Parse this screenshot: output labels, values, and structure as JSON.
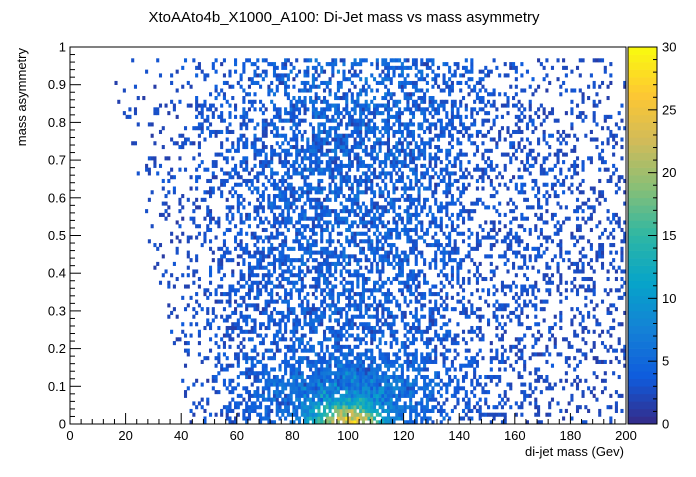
{
  "chart_data": {
    "type": "heatmap",
    "title": "XtoAAto4b_X1000_A100: Di-Jet mass vs mass asymmetry",
    "xlabel": "di-jet mass (Gev)",
    "ylabel": "mass asymmetry",
    "xlim": [
      0,
      200
    ],
    "ylim": [
      0,
      1
    ],
    "x_ticks": [
      "0",
      "20",
      "40",
      "60",
      "80",
      "100",
      "120",
      "140",
      "160",
      "180",
      "200"
    ],
    "y_ticks": [
      "0",
      "0.1",
      "0.2",
      "0.3",
      "0.4",
      "0.5",
      "0.6",
      "0.7",
      "0.8",
      "0.9",
      "1"
    ],
    "z_range": [
      0,
      30
    ],
    "z_ticks": [
      "0",
      "5",
      "10",
      "15",
      "20",
      "25",
      "30"
    ],
    "bins": {
      "x": 200,
      "y": 100
    },
    "density_model": {
      "x_range_populated": [
        15,
        200
      ],
      "peak_x": 100,
      "peak_y": 0.02,
      "peak_value": 30,
      "lower_mass_edge": "x increases from about 43 at y=0 to about 15 at y=0.95",
      "note": "sparse cells at high asymmetry; dense band near x=80-120, y=0-0.1"
    },
    "colormap": [
      "#352a87",
      "#0f5cdd",
      "#1481d6",
      "#06a4ca",
      "#2eb7a4",
      "#87bf77",
      "#d1bb59",
      "#fec832",
      "#f9fb0e"
    ],
    "grid": false,
    "legend": "color scale at right"
  }
}
